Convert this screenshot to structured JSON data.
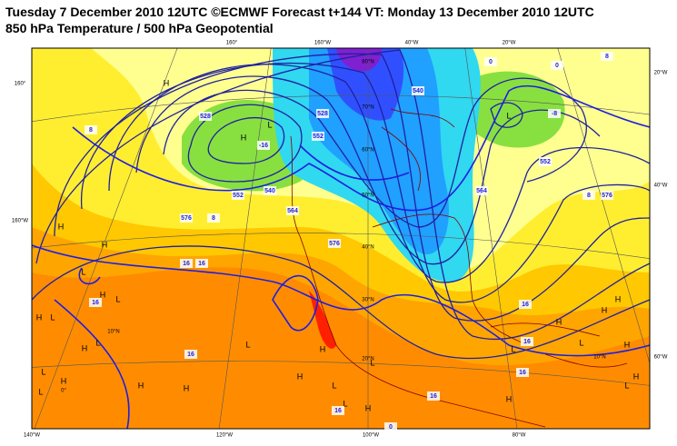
{
  "header": {
    "title": "Tuesday 7 December 2010 12UTC ©ECMWF Forecast t+144 VT: Monday 13 December 2010 12UTC",
    "subtitle": "850 hPa Temperature / 500 hPa Geopotential"
  },
  "map": {
    "graticule_labels": [
      "160°",
      "160°W",
      "40°W",
      "20°W",
      "160°",
      "160°W",
      "20°W",
      "40°W",
      "60°W",
      "140°W",
      "120°W",
      "100°W",
      "80°W",
      "80°N",
      "70°N",
      "60°N",
      "50°N",
      "40°N",
      "30°N",
      "20°N",
      "10°N",
      "10°N",
      "0°"
    ],
    "pressure_centers": [
      "H",
      "L",
      "H",
      "L",
      "H",
      "H",
      "L",
      "H",
      "L",
      "H",
      "L",
      "L",
      "H",
      "L",
      "L",
      "H",
      "H",
      "L",
      "H",
      "L",
      "H",
      "L",
      "H",
      "H",
      "L",
      "H",
      "H",
      "L",
      "H",
      "H",
      "L",
      "H",
      "L",
      "H"
    ],
    "contour_labels": [
      "528",
      "552",
      "576",
      "540",
      "564",
      "576",
      "552",
      "528",
      "540",
      "576",
      "552",
      "564",
      "0",
      "-8",
      "8",
      "0",
      "8",
      "16",
      "16",
      "16",
      "16",
      "16",
      "16",
      "8",
      "-16",
      "16",
      "16",
      "16",
      "0",
      "8"
    ]
  }
}
